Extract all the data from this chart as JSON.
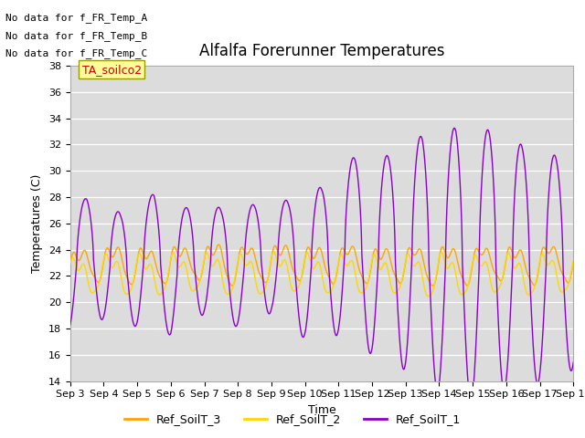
{
  "title": "Alfalfa Forerunner Temperatures",
  "xlabel": "Time",
  "ylabel": "Temperatures (C)",
  "ylim": [
    14,
    38
  ],
  "yticks": [
    14,
    16,
    18,
    20,
    22,
    24,
    26,
    28,
    30,
    32,
    34,
    36,
    38
  ],
  "bg_color": "#dcdcdc",
  "line_colors": {
    "Ref_SoilT_3": "#FFA500",
    "Ref_SoilT_2": "#FFD700",
    "Ref_SoilT_1": "#8B00CC"
  },
  "no_data_text": [
    "No data for f_FR_Temp_A",
    "No data for f_FR_Temp_B",
    "No data for f_FR_Temp_C"
  ],
  "annotation_text": "TA_soilco2",
  "annotation_color": "#cc0000",
  "annotation_bg": "#ffff99",
  "xticklabels": [
    "Sep 3",
    "Sep 4",
    "Sep 5",
    "Sep 6",
    "Sep 7",
    "Sep 8",
    "Sep 9",
    "Sep 10",
    "Sep 11",
    "Sep 12",
    "Sep 13",
    "Sep 14",
    "Sep 15",
    "Sep 16",
    "Sep 17",
    "Sep 18"
  ],
  "n_days": 15,
  "linewidth": 1.0,
  "title_fontsize": 12,
  "label_fontsize": 9,
  "tick_fontsize": 8,
  "legend_fontsize": 9
}
